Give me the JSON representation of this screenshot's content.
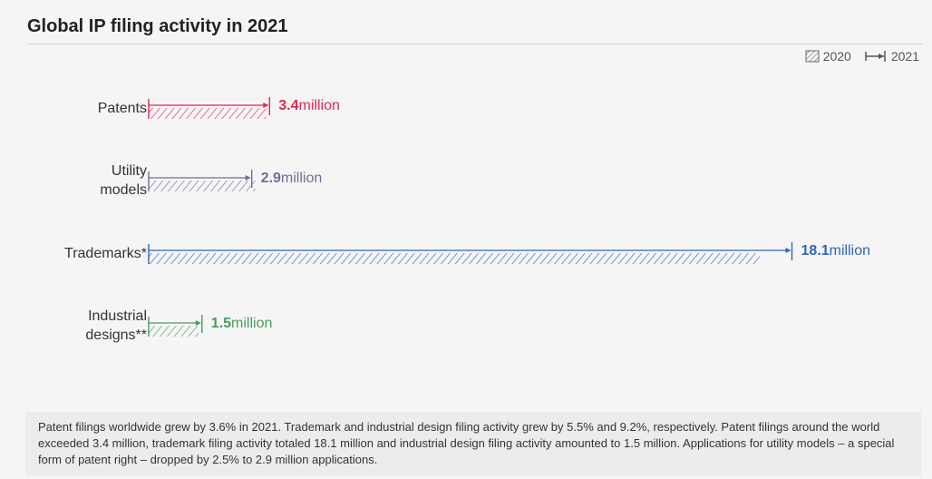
{
  "title": "Global IP filing activity in 2021",
  "legend": {
    "label_2020": "2020",
    "label_2021": "2021"
  },
  "note": "Patent filings worldwide grew by 3.6% in 2021. Trademark and industrial design filing activity grew by 5.5% and 9.2%, respectively. Patent filings around the world exceeded 3.4 million, trademark filing activity totaled 18.1 million and industrial design filing activity amounted to 1.5 million. Applications for utility models – a special form of patent right – dropped by 2.5% to 2.9 million applications.",
  "colors": {
    "patents": "#e0294f",
    "utility": "#6b6f97",
    "trademarks": "#2f67b1",
    "designs": "#4a9a5e"
  },
  "chart_data": {
    "type": "bar",
    "orientation": "horizontal",
    "title": "Global IP filing activity in 2021",
    "unit": "million",
    "categories": [
      "Patents",
      "Utility models",
      "Trademarks*",
      "Industrial designs**"
    ],
    "series": [
      {
        "name": "2020",
        "values": [
          3.3,
          3.0,
          17.2,
          1.4
        ]
      },
      {
        "name": "2021",
        "values": [
          3.4,
          2.9,
          18.1,
          1.5
        ]
      }
    ],
    "value_labels": [
      {
        "num": "3.4",
        "unit": "million"
      },
      {
        "num": "2.9",
        "unit": "million"
      },
      {
        "num": "18.1",
        "unit": "million"
      },
      {
        "num": "1.5",
        "unit": "million"
      }
    ],
    "label_lines": [
      [
        "Patents"
      ],
      [
        "Utility",
        "models"
      ],
      [
        "Trademarks*"
      ],
      [
        "Industrial",
        "designs**"
      ]
    ],
    "grid": false,
    "legend_position": "top-right"
  }
}
